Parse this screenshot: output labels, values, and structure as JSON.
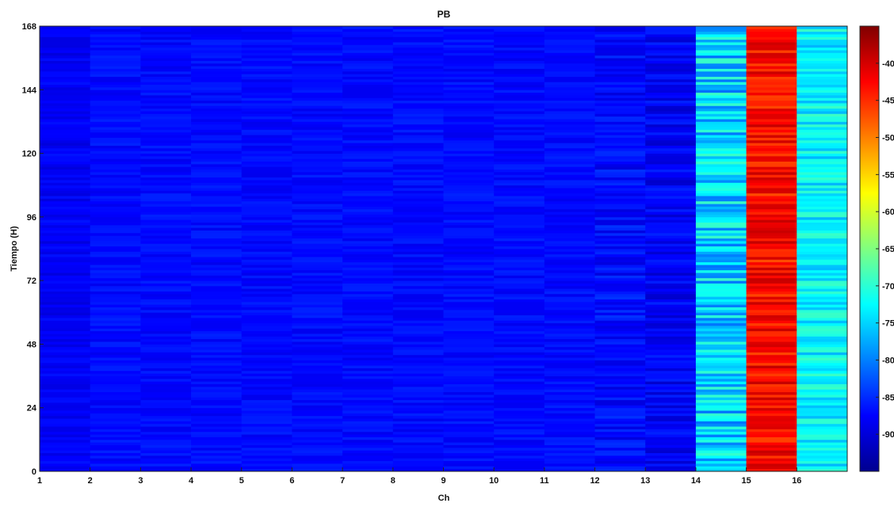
{
  "chart_data": {
    "type": "heatmap",
    "title": "PB",
    "xlabel": "Ch",
    "ylabel": "Tiempo (H)",
    "xlim": [
      1,
      17
    ],
    "ylim": [
      0,
      168
    ],
    "x_ticks": [
      1,
      2,
      3,
      4,
      5,
      6,
      7,
      8,
      9,
      10,
      11,
      12,
      13,
      14,
      15,
      16
    ],
    "y_ticks": [
      0,
      24,
      48,
      72,
      96,
      120,
      144,
      168
    ],
    "colorbar": {
      "range": [
        -95,
        -35
      ],
      "ticks": [
        -40,
        -45,
        -50,
        -55,
        -60,
        -65,
        -70,
        -75,
        -80,
        -85,
        -90
      ],
      "colormap": "jet"
    },
    "channels": [
      1,
      2,
      3,
      4,
      5,
      6,
      7,
      8,
      9,
      10,
      11,
      12,
      13,
      14,
      15,
      16
    ],
    "channel_mean_values": [
      -88,
      -87,
      -87,
      -87,
      -87,
      -87,
      -87,
      -87,
      -87,
      -87,
      -87,
      -87,
      -88,
      -75,
      -43,
      -73
    ],
    "grid": false
  }
}
